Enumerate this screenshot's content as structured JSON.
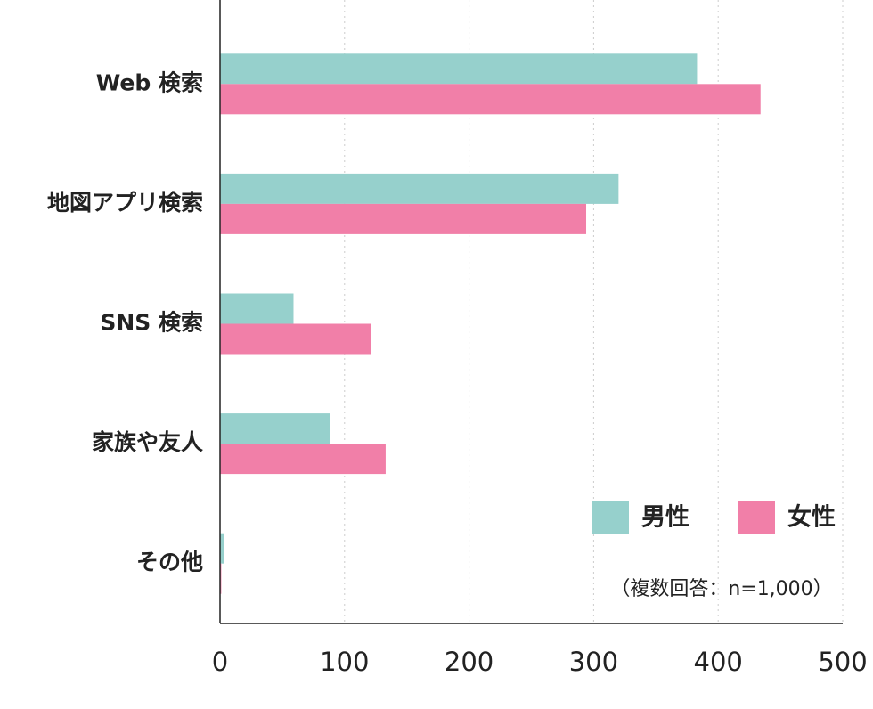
{
  "chart_data": {
    "type": "hbar",
    "categories": [
      "Web 検索",
      "地図アプリ検索",
      "SNS 検索",
      "家族や友人",
      "その他"
    ],
    "series": [
      {
        "name": "男性",
        "color": "#96d0cc",
        "values": [
          383,
          320,
          59,
          88,
          3
        ]
      },
      {
        "name": "女性",
        "color": "#f17fa8",
        "values": [
          434,
          294,
          121,
          133,
          1
        ]
      }
    ],
    "xlim": [
      0,
      500
    ],
    "xticks": [
      0,
      100,
      200,
      300,
      400,
      500
    ],
    "grid": true,
    "legend": "lower right",
    "note": "（複数回答：n=1,000）"
  }
}
